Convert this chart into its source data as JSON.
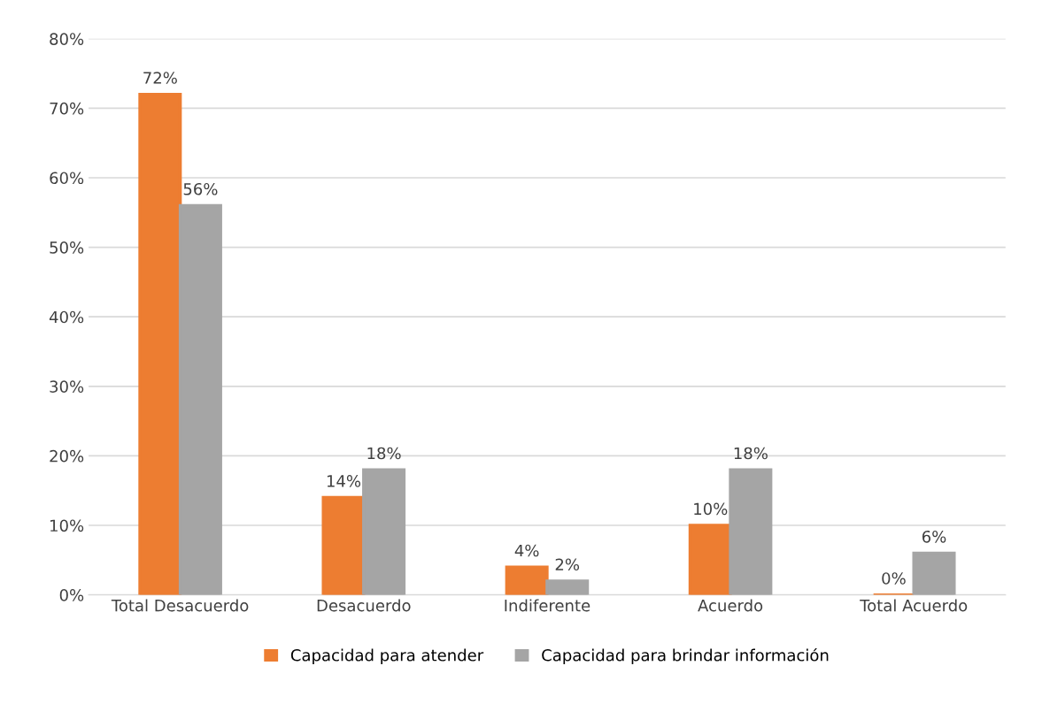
{
  "chart_data": {
    "type": "bar",
    "categories": [
      "Total Desacuerdo",
      "Desacuerdo",
      "Indiferente",
      "Acuerdo",
      "Total Acuerdo"
    ],
    "series": [
      {
        "name": "Capacidad para atender",
        "color": "#ed7d31",
        "values": [
          72,
          14,
          4,
          10,
          0
        ],
        "value_labels": [
          "72%",
          "14%",
          "4%",
          "10%",
          "0%"
        ]
      },
      {
        "name": "Capacidad para brindar información",
        "color": "#a5a5a5",
        "values": [
          56,
          18,
          2,
          18,
          6
        ],
        "value_labels": [
          "56%",
          "18%",
          "2%",
          "18%",
          "6%"
        ]
      }
    ],
    "ylim": [
      0,
      80
    ],
    "yticks": [
      {
        "value": 0,
        "label": "0%"
      },
      {
        "value": 10,
        "label": "10%"
      },
      {
        "value": 20,
        "label": "20%"
      },
      {
        "value": 30,
        "label": "30%"
      },
      {
        "value": 40,
        "label": "40%"
      },
      {
        "value": 50,
        "label": "50%"
      },
      {
        "value": 60,
        "label": "60%"
      },
      {
        "value": 70,
        "label": "70%"
      },
      {
        "value": 80,
        "label": "80%"
      }
    ],
    "grid": "y",
    "legend": "bottom"
  }
}
